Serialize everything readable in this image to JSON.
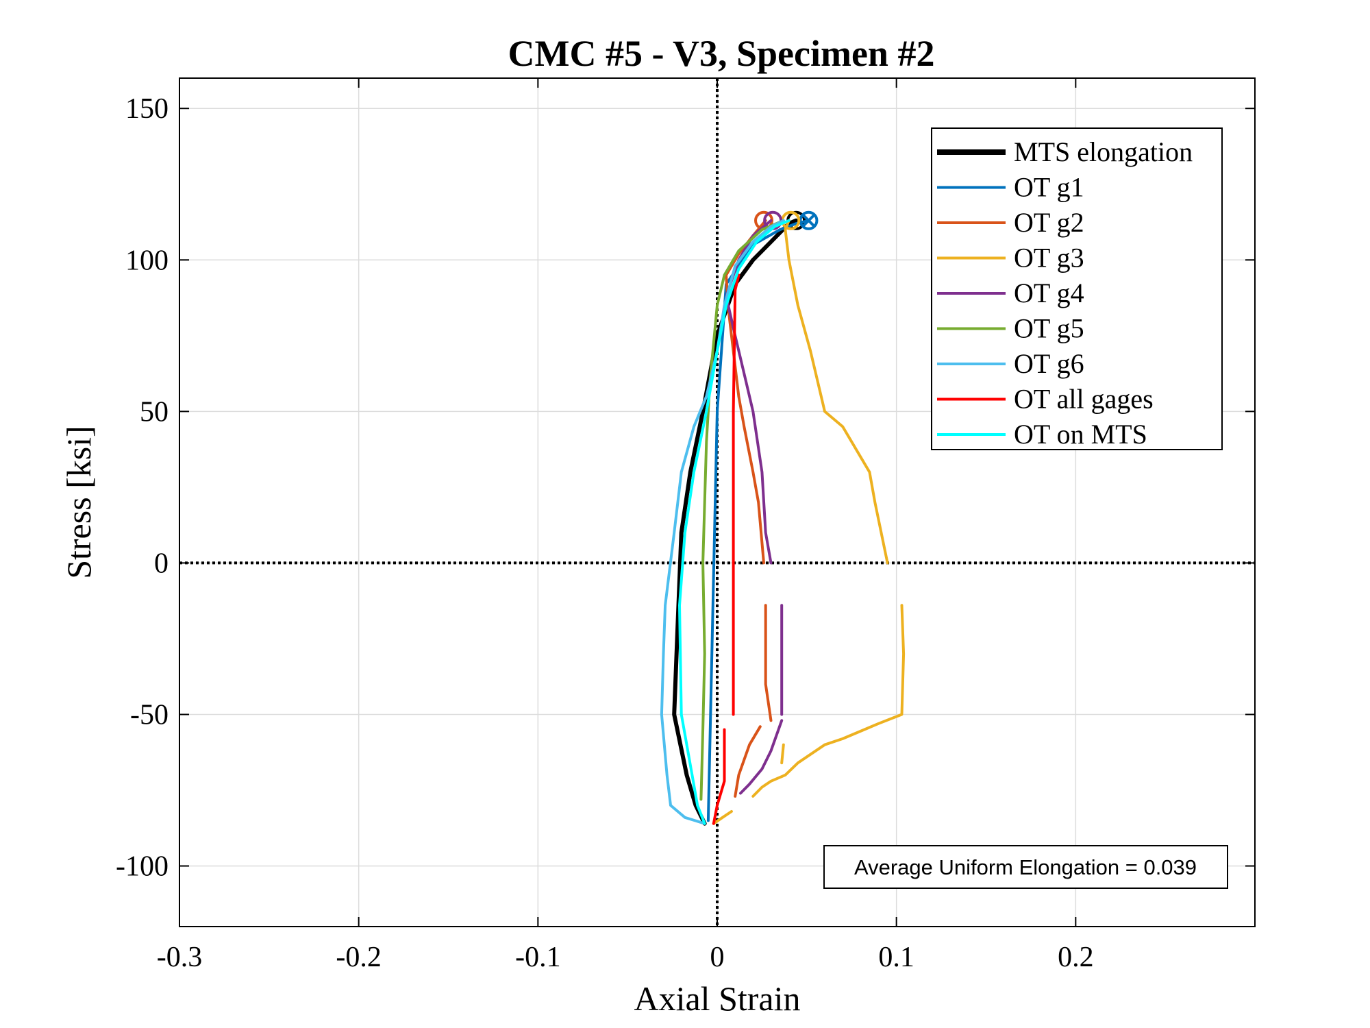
{
  "chart_data": {
    "type": "line",
    "title": "CMC #5 - V3, Specimen #2",
    "xlabel": "Axial Strain",
    "ylabel": "Stress [ksi]",
    "xlim": [
      -0.3,
      0.3
    ],
    "ylim": [
      -120,
      160
    ],
    "xticks": [
      -0.3,
      -0.2,
      -0.1,
      0,
      0.1,
      0.2
    ],
    "xtick_labels": [
      "-0.3",
      "-0.2",
      "-0.1",
      "0",
      "0.1",
      "0.2"
    ],
    "yticks": [
      -100,
      -50,
      0,
      50,
      100,
      150
    ],
    "ytick_labels": [
      "-100",
      "-50",
      "0",
      "50",
      "100",
      "150"
    ],
    "grid": true,
    "legend_position": "top-right",
    "annotation": "Average Uniform Elongation = 0.039",
    "series": [
      {
        "name": "MTS elongation",
        "color": "#000000",
        "width": 6,
        "points": [
          [
            -0.007,
            -86
          ],
          [
            -0.012,
            -80
          ],
          [
            -0.017,
            -70
          ],
          [
            -0.024,
            -50
          ],
          [
            -0.022,
            -20
          ],
          [
            -0.02,
            10
          ],
          [
            -0.015,
            30
          ],
          [
            -0.008,
            50
          ],
          [
            0.0,
            75
          ],
          [
            0.01,
            92
          ],
          [
            0.02,
            100
          ],
          [
            0.03,
            106
          ],
          [
            0.04,
            112
          ],
          [
            0.044,
            113
          ]
        ],
        "markers": [
          {
            "x": 0.044,
            "y": 113,
            "type": "o"
          }
        ]
      },
      {
        "name": "OT g1",
        "color": "#0072BD",
        "width": 4,
        "points": [
          [
            -0.005,
            -85
          ],
          [
            0.0,
            50
          ],
          [
            0.005,
            92
          ],
          [
            0.02,
            105
          ],
          [
            0.035,
            110
          ],
          [
            0.044,
            112
          ],
          [
            0.051,
            113
          ]
        ],
        "markers": [
          {
            "x": 0.051,
            "y": 113,
            "type": "ox"
          }
        ]
      },
      {
        "name": "OT g2",
        "color": "#D95319",
        "width": 4,
        "points": [
          [
            0.024,
            -54
          ],
          [
            0.018,
            -60
          ],
          [
            0.012,
            -70
          ],
          [
            0.01,
            -77
          ],
          [
            null,
            null
          ],
          [
            0.027,
            -14
          ],
          [
            0.027,
            -40
          ],
          [
            0.03,
            -52
          ],
          [
            null,
            null
          ],
          [
            0.026,
            0
          ],
          [
            0.023,
            20
          ],
          [
            0.02,
            30
          ],
          [
            0.015,
            45
          ],
          [
            0.012,
            55
          ],
          [
            0.008,
            75
          ],
          [
            0.006,
            85
          ],
          [
            0.005,
            95
          ],
          [
            0.012,
            102
          ],
          [
            0.02,
            108
          ],
          [
            0.027,
            113
          ]
        ],
        "markers": [
          {
            "x": 0.026,
            "y": 113,
            "type": "o"
          }
        ]
      },
      {
        "name": "OT g3",
        "color": "#EDB120",
        "width": 4,
        "points": [
          [
            -0.002,
            -86
          ],
          [
            0.003,
            -84
          ],
          [
            0.008,
            -82
          ],
          [
            null,
            null
          ],
          [
            0.095,
            0
          ],
          [
            0.088,
            20
          ],
          [
            0.085,
            30
          ],
          [
            0.07,
            45
          ],
          [
            0.06,
            50
          ],
          [
            0.058,
            55
          ],
          [
            0.052,
            70
          ],
          [
            0.045,
            85
          ],
          [
            0.04,
            100
          ],
          [
            0.038,
            110
          ],
          [
            0.04,
            113
          ],
          [
            null,
            null
          ],
          [
            0.103,
            -14
          ],
          [
            0.104,
            -30
          ],
          [
            0.103,
            -50
          ],
          [
            0.09,
            -53
          ],
          [
            0.07,
            -58
          ],
          [
            0.06,
            -60
          ],
          [
            0.045,
            -66
          ],
          [
            0.038,
            -70
          ],
          [
            0.03,
            -72
          ],
          [
            0.025,
            -74
          ],
          [
            0.02,
            -77
          ],
          [
            null,
            null
          ],
          [
            0.037,
            -60
          ],
          [
            0.036,
            -66
          ]
        ],
        "markers": [
          {
            "x": 0.041,
            "y": 113,
            "type": "o"
          }
        ]
      },
      {
        "name": "OT g4",
        "color": "#7E2F8E",
        "width": 4,
        "points": [
          [
            0.036,
            -52
          ],
          [
            0.03,
            -62
          ],
          [
            0.025,
            -68
          ],
          [
            0.018,
            -73
          ],
          [
            0.013,
            -76
          ],
          [
            null,
            null
          ],
          [
            0.036,
            -14
          ],
          [
            0.036,
            -50
          ],
          [
            null,
            null
          ],
          [
            0.03,
            0
          ],
          [
            0.027,
            10
          ],
          [
            0.025,
            30
          ],
          [
            0.02,
            50
          ],
          [
            0.016,
            60
          ],
          [
            0.01,
            75
          ],
          [
            0.005,
            88
          ],
          [
            0.012,
            100
          ],
          [
            0.02,
            108
          ],
          [
            0.03,
            113
          ]
        ],
        "markers": [
          {
            "x": 0.031,
            "y": 113,
            "type": "o"
          }
        ]
      },
      {
        "name": "OT g5",
        "color": "#77AC30",
        "width": 4,
        "points": [
          [
            -0.009,
            -78
          ],
          [
            -0.008,
            -55
          ],
          [
            -0.007,
            -30
          ],
          [
            -0.008,
            0
          ],
          [
            -0.007,
            20
          ],
          [
            -0.006,
            40
          ],
          [
            -0.004,
            60
          ],
          [
            0.0,
            85
          ],
          [
            0.004,
            95
          ],
          [
            0.012,
            103
          ],
          [
            0.025,
            110
          ],
          [
            0.037,
            113
          ]
        ],
        "markers": []
      },
      {
        "name": "OT g6",
        "color": "#4DBEEE",
        "width": 4,
        "points": [
          [
            -0.007,
            -86
          ],
          [
            -0.018,
            -84
          ],
          [
            -0.026,
            -80
          ],
          [
            -0.028,
            -70
          ],
          [
            -0.031,
            -50
          ],
          [
            -0.03,
            -30
          ],
          [
            -0.029,
            -14
          ],
          [
            -0.024,
            10
          ],
          [
            -0.02,
            30
          ],
          [
            -0.013,
            45
          ],
          [
            -0.006,
            55
          ],
          [
            0.0,
            70
          ],
          [
            0.004,
            85
          ],
          [
            0.01,
            98
          ],
          [
            0.02,
            106
          ],
          [
            0.03,
            111
          ],
          [
            0.037,
            113
          ]
        ],
        "markers": []
      },
      {
        "name": "OT all gages",
        "color": "#FF0000",
        "width": 4,
        "points": [
          [
            -0.002,
            -86
          ],
          [
            0.0,
            -80
          ],
          [
            0.004,
            -72
          ],
          [
            0.004,
            -55
          ],
          [
            null,
            null
          ],
          [
            0.009,
            -50
          ],
          [
            0.009,
            0
          ],
          [
            0.009,
            50
          ],
          [
            0.01,
            90
          ],
          [
            0.012,
            95
          ]
        ],
        "markers": []
      },
      {
        "name": "OT on MTS",
        "color": "#00FFFF",
        "width": 4,
        "points": [
          [
            -0.007,
            -86
          ],
          [
            -0.011,
            -80
          ],
          [
            -0.014,
            -70
          ],
          [
            -0.02,
            -50
          ],
          [
            -0.021,
            -14
          ],
          [
            -0.018,
            10
          ],
          [
            -0.013,
            30
          ],
          [
            -0.006,
            50
          ],
          [
            0.0,
            70
          ],
          [
            0.005,
            85
          ],
          [
            0.012,
            97
          ],
          [
            0.022,
            106
          ],
          [
            0.032,
            111
          ],
          [
            0.04,
            113
          ]
        ],
        "markers": []
      }
    ]
  }
}
